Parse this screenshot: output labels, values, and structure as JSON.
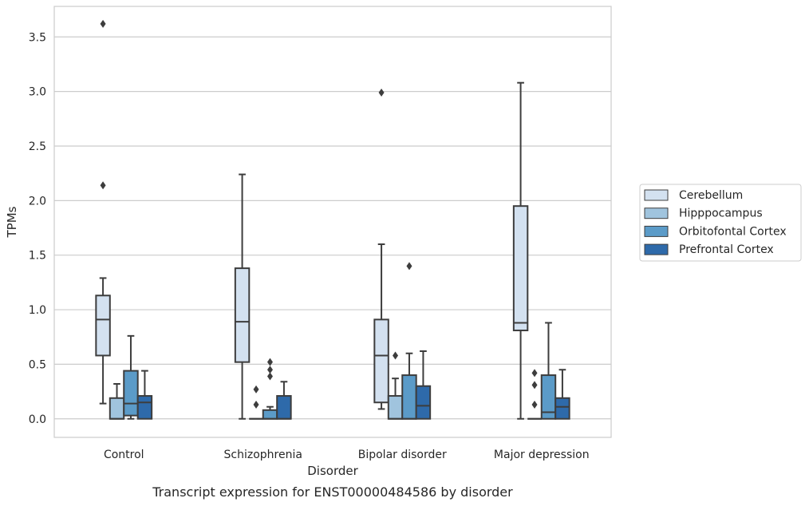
{
  "chart_data": {
    "type": "box",
    "title": "",
    "caption": "Transcript expression for ENST00000484586 by disorder",
    "xlabel": "Disorder",
    "ylabel": "TPMs",
    "ylim": [
      -0.17,
      3.78
    ],
    "yticks": [
      "0.0",
      "0.5",
      "1.0",
      "1.5",
      "2.0",
      "2.5",
      "3.0",
      "3.5"
    ],
    "grid": "horizontal",
    "legend_position": "right",
    "categories": [
      "Control",
      "Schizophrenia",
      "Bipolar disorder",
      "Major depression"
    ],
    "series": [
      {
        "name": "Cerebellum",
        "color": "#d3e1f0",
        "boxes": [
          {
            "min": 0.14,
            "q1": 0.58,
            "median": 0.91,
            "q3": 1.13,
            "max": 1.29,
            "outliers": [
              2.14,
              3.62
            ]
          },
          {
            "min": 0.0,
            "q1": 0.52,
            "median": 0.89,
            "q3": 1.38,
            "max": 2.24,
            "outliers": []
          },
          {
            "min": 0.09,
            "q1": 0.15,
            "median": 0.58,
            "q3": 0.91,
            "max": 1.6,
            "outliers": [
              2.99
            ]
          },
          {
            "min": 0.0,
            "q1": 0.81,
            "median": 0.88,
            "q3": 1.95,
            "max": 3.08,
            "outliers": []
          }
        ]
      },
      {
        "name": "Hipppocampus",
        "color": "#a0c4de",
        "boxes": [
          {
            "min": 0.0,
            "q1": 0.0,
            "median": 0.0,
            "q3": 0.19,
            "max": 0.32,
            "outliers": []
          },
          {
            "min": 0.0,
            "q1": 0.0,
            "median": 0.0,
            "q3": 0.0,
            "max": 0.0,
            "outliers": [
              0.13,
              0.27
            ]
          },
          {
            "min": 0.0,
            "q1": 0.0,
            "median": 0.0,
            "q3": 0.21,
            "max": 0.37,
            "outliers": [
              0.58
            ]
          },
          {
            "min": 0.0,
            "q1": 0.0,
            "median": 0.0,
            "q3": 0.0,
            "max": 0.0,
            "outliers": [
              0.13,
              0.31,
              0.42
            ]
          }
        ]
      },
      {
        "name": "Orbitofontal Cortex",
        "color": "#5b9bc8",
        "boxes": [
          {
            "min": 0.0,
            "q1": 0.03,
            "median": 0.14,
            "q3": 0.44,
            "max": 0.76,
            "outliers": []
          },
          {
            "min": 0.0,
            "q1": 0.0,
            "median": 0.0,
            "q3": 0.08,
            "max": 0.11,
            "outliers": [
              0.39,
              0.45,
              0.52
            ]
          },
          {
            "min": 0.0,
            "q1": 0.0,
            "median": 0.0,
            "q3": 0.4,
            "max": 0.6,
            "outliers": [
              1.4
            ]
          },
          {
            "min": 0.0,
            "q1": 0.0,
            "median": 0.06,
            "q3": 0.4,
            "max": 0.88,
            "outliers": []
          }
        ]
      },
      {
        "name": "Prefrontal Cortex",
        "color": "#2e6aaa",
        "boxes": [
          {
            "min": 0.0,
            "q1": 0.0,
            "median": 0.15,
            "q3": 0.21,
            "max": 0.44,
            "outliers": []
          },
          {
            "min": 0.0,
            "q1": 0.0,
            "median": 0.0,
            "q3": 0.21,
            "max": 0.34,
            "outliers": []
          },
          {
            "min": 0.0,
            "q1": 0.0,
            "median": 0.12,
            "q3": 0.3,
            "max": 0.62,
            "outliers": []
          },
          {
            "min": 0.0,
            "q1": 0.0,
            "median": 0.11,
            "q3": 0.19,
            "max": 0.45,
            "outliers": []
          }
        ]
      }
    ]
  }
}
